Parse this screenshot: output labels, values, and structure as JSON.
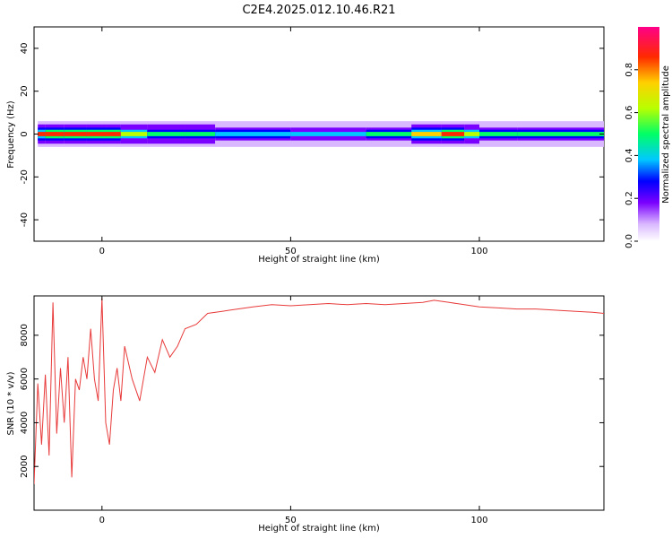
{
  "title": "C2E4.2025.012.10.46.R21",
  "chart_data": [
    {
      "type": "heatmap",
      "xlabel": "Height of straight line (km)",
      "ylabel": "Frequency (Hz)",
      "xlim": [
        -18,
        133
      ],
      "ylim": [
        -50,
        50
      ],
      "x_ticks": [
        0,
        50,
        100
      ],
      "y_ticks": [
        40,
        20,
        0,
        -20,
        -40
      ],
      "colorbar": {
        "label": "Normalized spectral amplitude",
        "range": [
          0,
          1
        ],
        "ticks": [
          "0.0",
          "0.2",
          "0.4",
          "0.6",
          "0.8"
        ]
      },
      "band": {
        "center_freq": 0,
        "description_points": [
          {
            "x": -17,
            "amp": 0.85
          },
          {
            "x": -15,
            "amp": 0.9
          },
          {
            "x": -10,
            "amp": 0.9
          },
          {
            "x": -4,
            "amp": 0.9
          },
          {
            "x": 1,
            "amp": 0.95
          },
          {
            "x": 5,
            "amp": 0.9
          },
          {
            "x": 12,
            "amp": 0.5
          },
          {
            "x": 22,
            "amp": 0.7
          },
          {
            "x": 30,
            "amp": 0.5
          },
          {
            "x": 50,
            "amp": 0.45
          },
          {
            "x": 70,
            "amp": 0.45
          },
          {
            "x": 82,
            "amp": 0.6
          },
          {
            "x": 90,
            "amp": 0.98
          },
          {
            "x": 96,
            "amp": 0.9
          },
          {
            "x": 100,
            "amp": 0.5
          },
          {
            "x": 110,
            "amp": 0.55
          },
          {
            "x": 133,
            "amp": 0.5
          }
        ]
      }
    },
    {
      "type": "line",
      "xlabel": "Height of straight line (km)",
      "ylabel": "SNR (10 * v/v)",
      "xlim": [
        -18,
        133
      ],
      "ylim": [
        0,
        9800
      ],
      "x_ticks": [
        0,
        50,
        100
      ],
      "y_ticks": [
        2000,
        4000,
        6000,
        8000
      ],
      "color": "#e83a3a",
      "series": [
        {
          "values": [
            {
              "x": -18,
              "y": 1200
            },
            {
              "x": -17,
              "y": 5800
            },
            {
              "x": -16,
              "y": 3000
            },
            {
              "x": -15,
              "y": 6200
            },
            {
              "x": -14,
              "y": 2500
            },
            {
              "x": -13,
              "y": 9500
            },
            {
              "x": -12,
              "y": 3500
            },
            {
              "x": -11,
              "y": 6500
            },
            {
              "x": -10,
              "y": 4000
            },
            {
              "x": -9,
              "y": 7000
            },
            {
              "x": -8,
              "y": 1500
            },
            {
              "x": -7,
              "y": 6000
            },
            {
              "x": -6,
              "y": 5500
            },
            {
              "x": -5,
              "y": 7000
            },
            {
              "x": -4,
              "y": 6000
            },
            {
              "x": -3,
              "y": 8300
            },
            {
              "x": -2,
              "y": 6000
            },
            {
              "x": -1,
              "y": 5000
            },
            {
              "x": 0,
              "y": 9700
            },
            {
              "x": 1,
              "y": 4000
            },
            {
              "x": 2,
              "y": 3000
            },
            {
              "x": 3,
              "y": 5500
            },
            {
              "x": 4,
              "y": 6500
            },
            {
              "x": 5,
              "y": 5000
            },
            {
              "x": 6,
              "y": 7500
            },
            {
              "x": 8,
              "y": 6000
            },
            {
              "x": 10,
              "y": 5000
            },
            {
              "x": 12,
              "y": 7000
            },
            {
              "x": 14,
              "y": 6300
            },
            {
              "x": 16,
              "y": 7800
            },
            {
              "x": 18,
              "y": 7000
            },
            {
              "x": 20,
              "y": 7500
            },
            {
              "x": 22,
              "y": 8300
            },
            {
              "x": 25,
              "y": 8500
            },
            {
              "x": 28,
              "y": 9000
            },
            {
              "x": 32,
              "y": 9100
            },
            {
              "x": 36,
              "y": 9200
            },
            {
              "x": 40,
              "y": 9300
            },
            {
              "x": 45,
              "y": 9400
            },
            {
              "x": 50,
              "y": 9350
            },
            {
              "x": 55,
              "y": 9400
            },
            {
              "x": 60,
              "y": 9450
            },
            {
              "x": 65,
              "y": 9400
            },
            {
              "x": 70,
              "y": 9450
            },
            {
              "x": 75,
              "y": 9400
            },
            {
              "x": 80,
              "y": 9450
            },
            {
              "x": 85,
              "y": 9500
            },
            {
              "x": 88,
              "y": 9600
            },
            {
              "x": 92,
              "y": 9500
            },
            {
              "x": 96,
              "y": 9400
            },
            {
              "x": 100,
              "y": 9300
            },
            {
              "x": 105,
              "y": 9250
            },
            {
              "x": 110,
              "y": 9200
            },
            {
              "x": 115,
              "y": 9200
            },
            {
              "x": 120,
              "y": 9150
            },
            {
              "x": 125,
              "y": 9100
            },
            {
              "x": 130,
              "y": 9050
            },
            {
              "x": 133,
              "y": 9000
            }
          ]
        }
      ]
    }
  ]
}
